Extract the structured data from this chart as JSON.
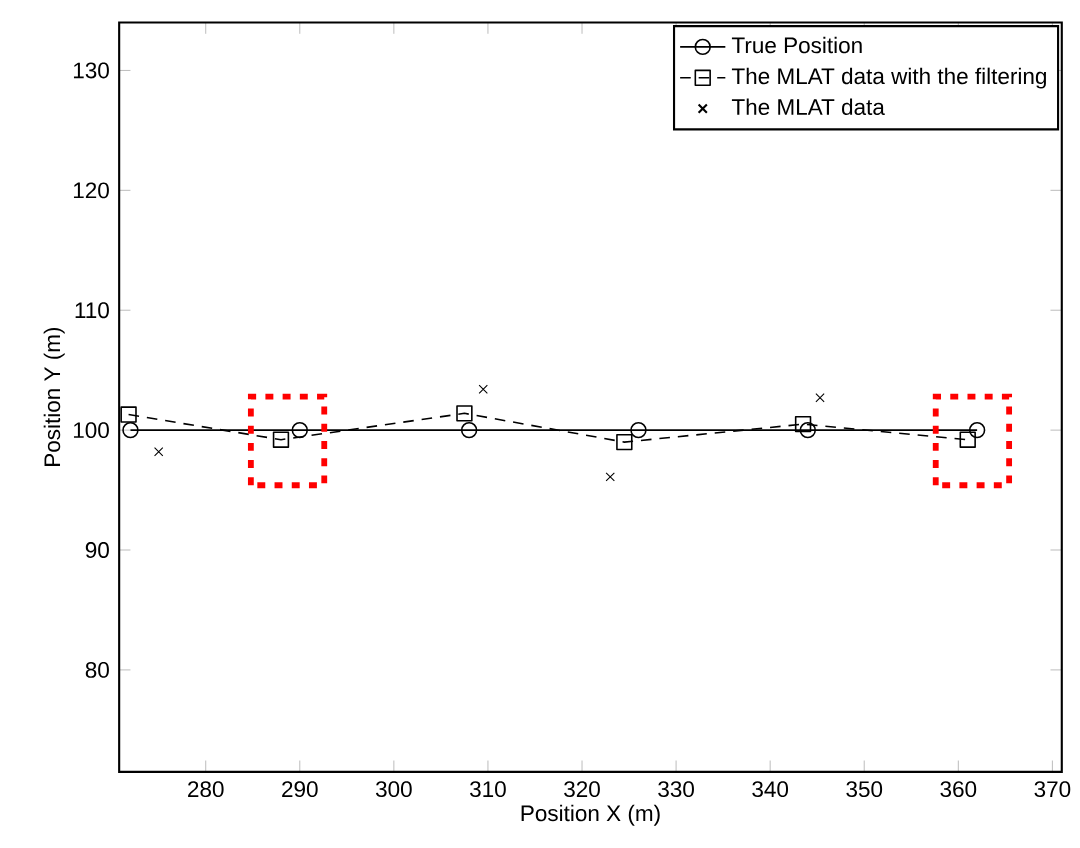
{
  "chart_data": {
    "type": "line",
    "xlabel": "Position X (m)",
    "ylabel": "Position Y (m)",
    "xlim": [
      270.8,
      371
    ],
    "ylim": [
      71.5,
      134
    ],
    "xticks": [
      280,
      290,
      300,
      310,
      320,
      330,
      340,
      350,
      360,
      370
    ],
    "yticks": [
      80,
      90,
      100,
      110,
      120,
      130
    ],
    "grid": false,
    "legend": "top right",
    "series": [
      {
        "name": "True Position",
        "color": "#000000",
        "marker": "circle",
        "line_style": "solid",
        "x": [
          272,
          290,
          308,
          326,
          344,
          362
        ],
        "values": [
          100,
          100,
          100,
          100,
          100,
          100
        ]
      },
      {
        "name": "The MLAT data with the filtering",
        "color": "#000000",
        "marker": "square",
        "line_style": "dashed",
        "x": [
          271.8,
          288,
          307.5,
          324.5,
          343.5,
          361
        ],
        "values": [
          101.3,
          99.2,
          101.4,
          99.0,
          100.5,
          99.2
        ]
      },
      {
        "name": "The MLAT data",
        "type": "scatter",
        "color": "#000000",
        "marker": "cross",
        "x": [
          275,
          309.5,
          323,
          345.3
        ],
        "values": [
          98.2,
          103.4,
          96.1,
          102.7
        ]
      }
    ]
  }
}
